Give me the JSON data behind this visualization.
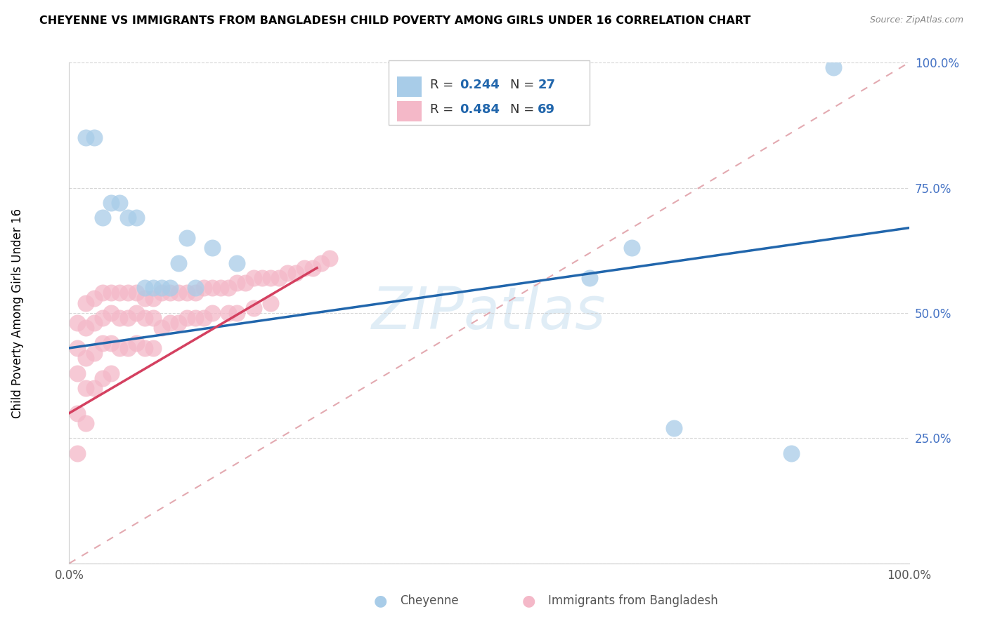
{
  "title": "CHEYENNE VS IMMIGRANTS FROM BANGLADESH CHILD POVERTY AMONG GIRLS UNDER 16 CORRELATION CHART",
  "source": "Source: ZipAtlas.com",
  "ylabel": "Child Poverty Among Girls Under 16",
  "watermark": "ZIPatlas",
  "cheyenne_color": "#a8cce8",
  "bangladesh_color": "#f4b8c8",
  "cheyenne_line_color": "#2166ac",
  "bangladesh_line_color": "#d44060",
  "diagonal_color": "#e0a0a8",
  "cheyenne_x": [
    0.02,
    0.03,
    0.04,
    0.05,
    0.06,
    0.07,
    0.08,
    0.09,
    0.1,
    0.11,
    0.12,
    0.13,
    0.14,
    0.15,
    0.17,
    0.2,
    0.62,
    0.67,
    0.72,
    0.86,
    0.91
  ],
  "cheyenne_y": [
    0.85,
    0.85,
    0.69,
    0.72,
    0.72,
    0.69,
    0.69,
    0.55,
    0.55,
    0.55,
    0.55,
    0.6,
    0.65,
    0.55,
    0.63,
    0.6,
    0.57,
    0.63,
    0.27,
    0.22,
    0.99
  ],
  "bangladesh_x": [
    0.01,
    0.01,
    0.01,
    0.01,
    0.01,
    0.02,
    0.02,
    0.02,
    0.02,
    0.02,
    0.03,
    0.03,
    0.03,
    0.03,
    0.04,
    0.04,
    0.04,
    0.04,
    0.05,
    0.05,
    0.05,
    0.05,
    0.06,
    0.06,
    0.06,
    0.07,
    0.07,
    0.07,
    0.08,
    0.08,
    0.08,
    0.09,
    0.09,
    0.09,
    0.1,
    0.1,
    0.1,
    0.11,
    0.11,
    0.12,
    0.12,
    0.13,
    0.13,
    0.14,
    0.14,
    0.15,
    0.15,
    0.16,
    0.16,
    0.17,
    0.17,
    0.18,
    0.19,
    0.19,
    0.2,
    0.2,
    0.21,
    0.22,
    0.22,
    0.23,
    0.24,
    0.24,
    0.25,
    0.26,
    0.27,
    0.28,
    0.29,
    0.3,
    0.31
  ],
  "bangladesh_y": [
    0.48,
    0.43,
    0.38,
    0.3,
    0.22,
    0.52,
    0.47,
    0.41,
    0.35,
    0.28,
    0.53,
    0.48,
    0.42,
    0.35,
    0.54,
    0.49,
    0.44,
    0.37,
    0.54,
    0.5,
    0.44,
    0.38,
    0.54,
    0.49,
    0.43,
    0.54,
    0.49,
    0.43,
    0.54,
    0.5,
    0.44,
    0.53,
    0.49,
    0.43,
    0.53,
    0.49,
    0.43,
    0.54,
    0.47,
    0.54,
    0.48,
    0.54,
    0.48,
    0.54,
    0.49,
    0.54,
    0.49,
    0.55,
    0.49,
    0.55,
    0.5,
    0.55,
    0.55,
    0.5,
    0.56,
    0.5,
    0.56,
    0.57,
    0.51,
    0.57,
    0.57,
    0.52,
    0.57,
    0.58,
    0.58,
    0.59,
    0.59,
    0.6,
    0.61
  ],
  "cheyenne_line": [
    0.0,
    0.43,
    1.0,
    0.67
  ],
  "bangladesh_line": [
    0.0,
    0.3,
    0.295,
    0.59
  ],
  "xlim": [
    0.0,
    1.0
  ],
  "ylim": [
    0.0,
    1.0
  ]
}
